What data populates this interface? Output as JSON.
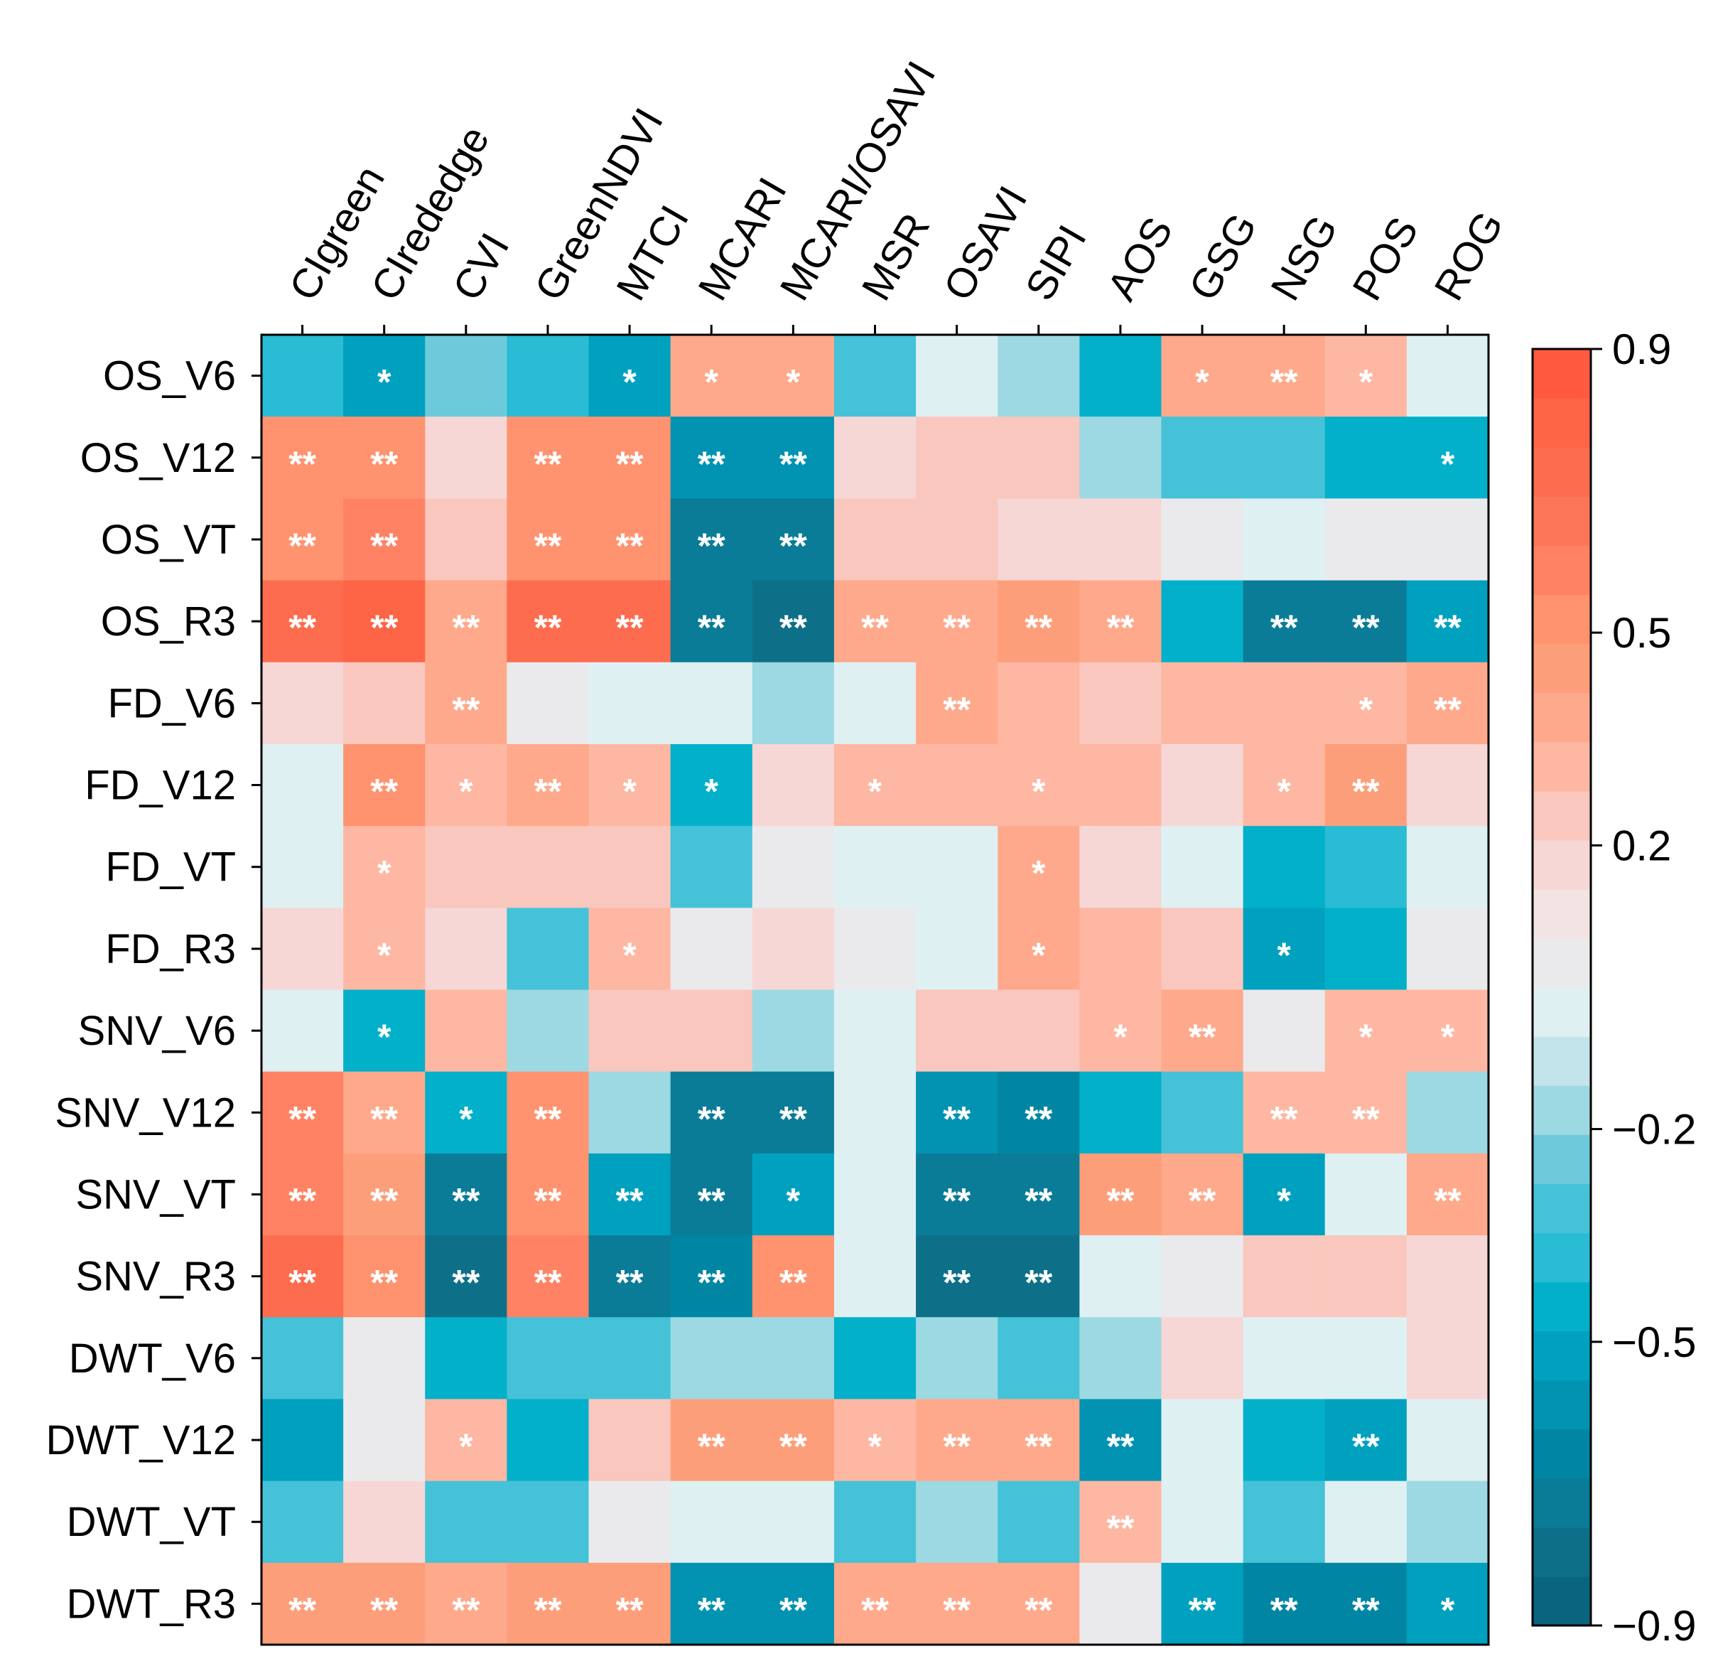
{
  "chart_data": {
    "type": "heatmap",
    "title": "",
    "xlabel": "",
    "ylabel": "",
    "columns": [
      "CIgreen",
      "CIrededge",
      "CVI",
      "GreenNDVI",
      "MTCI",
      "MCARI",
      "MCARI/OSAVI",
      "MSR",
      "OSAVI",
      "SIPI",
      "AOS",
      "GSG",
      "NSG",
      "POS",
      "ROG"
    ],
    "rows": [
      "OS_V6",
      "OS_V12",
      "OS_VT",
      "OS_R3",
      "FD_V6",
      "FD_V12",
      "FD_VT",
      "FD_R3",
      "SNV_V6",
      "SNV_V12",
      "SNV_VT",
      "SNV_R3",
      "DWT_V6",
      "DWT_V12",
      "DWT_VT",
      "DWT_R3"
    ],
    "values": [
      [
        -0.4,
        -0.5,
        -0.25,
        -0.4,
        -0.55,
        0.35,
        0.35,
        -0.3,
        -0.05,
        -0.15,
        -0.45,
        0.35,
        0.35,
        0.3,
        -0.05
      ],
      [
        0.55,
        0.55,
        0.15,
        0.55,
        0.5,
        -0.6,
        -0.6,
        0.15,
        0.25,
        0.25,
        -0.15,
        -0.3,
        -0.3,
        -0.45,
        -0.45
      ],
      [
        0.55,
        0.6,
        0.25,
        0.55,
        0.55,
        -0.7,
        -0.7,
        0.25,
        0.25,
        0.15,
        0.15,
        0.05,
        -0.05,
        0.05,
        0.05
      ],
      [
        0.7,
        0.8,
        0.4,
        0.7,
        0.75,
        -0.75,
        -0.8,
        0.4,
        0.4,
        0.45,
        0.4,
        -0.45,
        -0.7,
        -0.7,
        -0.55
      ],
      [
        0.15,
        0.25,
        0.35,
        0.05,
        -0.05,
        -0.05,
        -0.15,
        -0.05,
        0.35,
        0.3,
        0.25,
        0.3,
        0.3,
        0.3,
        0.35
      ],
      [
        -0.05,
        0.5,
        0.3,
        0.4,
        0.3,
        -0.45,
        0.15,
        0.3,
        0.3,
        0.3,
        0.3,
        0.15,
        0.3,
        0.45,
        0.15
      ],
      [
        -0.05,
        0.3,
        0.25,
        0.25,
        0.25,
        -0.3,
        0.05,
        -0.05,
        -0.05,
        0.35,
        0.15,
        -0.05,
        -0.45,
        -0.35,
        -0.05
      ],
      [
        0.15,
        0.3,
        0.15,
        -0.3,
        0.3,
        0.05,
        0.15,
        0.05,
        -0.05,
        0.4,
        0.3,
        0.25,
        -0.55,
        -0.45,
        0.05
      ],
      [
        -0.05,
        -0.45,
        0.3,
        -0.15,
        0.25,
        0.25,
        -0.15,
        -0.05,
        0.25,
        0.25,
        0.3,
        0.35,
        0.05,
        0.3,
        0.3
      ],
      [
        0.6,
        0.4,
        -0.45,
        0.55,
        -0.15,
        -0.7,
        -0.75,
        -0.05,
        -0.6,
        -0.65,
        -0.45,
        -0.3,
        0.3,
        0.3,
        -0.15
      ],
      [
        0.6,
        0.45,
        -0.7,
        0.55,
        -0.55,
        -0.7,
        -0.55,
        -0.05,
        -0.7,
        -0.7,
        0.45,
        0.4,
        -0.55,
        -0.05,
        0.4
      ],
      [
        0.7,
        0.55,
        -0.8,
        0.6,
        -0.7,
        -0.65,
        0.55,
        -0.05,
        -0.8,
        -0.8,
        -0.05,
        0.05,
        0.25,
        0.25,
        0.15
      ],
      [
        -0.3,
        0.05,
        -0.45,
        -0.3,
        -0.3,
        -0.15,
        -0.15,
        -0.45,
        -0.2,
        -0.3,
        -0.15,
        0.15,
        -0.05,
        -0.05,
        0.15
      ],
      [
        -0.5,
        0.05,
        0.3,
        -0.45,
        0.25,
        0.45,
        0.45,
        0.3,
        0.4,
        0.4,
        -0.6,
        -0.05,
        -0.45,
        -0.55,
        -0.05
      ],
      [
        -0.3,
        0.15,
        -0.3,
        -0.3,
        0.05,
        -0.05,
        -0.05,
        -0.3,
        -0.2,
        -0.3,
        0.3,
        -0.05,
        -0.3,
        -0.05,
        -0.2
      ],
      [
        0.45,
        0.45,
        0.4,
        0.45,
        0.45,
        -0.6,
        -0.6,
        0.4,
        0.4,
        0.4,
        0.05,
        -0.55,
        -0.65,
        -0.65,
        -0.55
      ]
    ],
    "significance": [
      [
        "",
        "*",
        "",
        "",
        "*",
        "*",
        "*",
        "",
        "",
        "",
        "",
        "*",
        "**",
        "*",
        ""
      ],
      [
        "**",
        "**",
        "",
        "**",
        "**",
        "**",
        "**",
        "",
        "",
        "",
        "",
        "",
        "",
        "",
        "*"
      ],
      [
        "**",
        "**",
        "",
        "**",
        "**",
        "**",
        "**",
        "",
        "",
        "",
        "",
        "",
        "",
        "",
        ""
      ],
      [
        "**",
        "**",
        "**",
        "**",
        "**",
        "**",
        "**",
        "**",
        "**",
        "**",
        "**",
        "",
        "**",
        "**",
        "**"
      ],
      [
        "",
        "",
        "**",
        "",
        "",
        "",
        "",
        "",
        "**",
        "",
        "",
        "",
        "",
        "*",
        "**"
      ],
      [
        "",
        "**",
        "*",
        "**",
        "*",
        "*",
        "",
        "*",
        "",
        "*",
        "",
        "",
        "*",
        "**",
        ""
      ],
      [
        "",
        "*",
        "",
        "",
        "",
        "",
        "",
        "",
        "",
        "*",
        "",
        "",
        "",
        "",
        ""
      ],
      [
        "",
        "*",
        "",
        "",
        "*",
        "",
        "",
        "",
        "",
        "*",
        "",
        "",
        "*",
        "",
        ""
      ],
      [
        "",
        "*",
        "",
        "",
        "",
        "",
        "",
        "",
        "",
        "",
        "*",
        "**",
        "",
        "*",
        "*"
      ],
      [
        "**",
        "**",
        "*",
        "**",
        "",
        "**",
        "**",
        "",
        "**",
        "**",
        "",
        "",
        "**",
        "**",
        ""
      ],
      [
        "**",
        "**",
        "**",
        "**",
        "**",
        "**",
        "*",
        "",
        "**",
        "**",
        "**",
        "**",
        "*",
        "",
        "**"
      ],
      [
        "**",
        "**",
        "**",
        "**",
        "**",
        "**",
        "**",
        "",
        "**",
        "**",
        "",
        "",
        "",
        "",
        ""
      ],
      [
        "",
        "",
        "",
        "",
        "",
        "",
        "",
        "",
        "",
        "",
        "",
        "",
        "",
        "",
        ""
      ],
      [
        "",
        "",
        "*",
        "",
        "",
        "**",
        "**",
        "*",
        "**",
        "**",
        "**",
        "",
        "",
        "**",
        ""
      ],
      [
        "",
        "",
        "",
        "",
        "",
        "",
        "",
        "",
        "",
        "",
        "**",
        "",
        "",
        "",
        ""
      ],
      [
        "**",
        "**",
        "**",
        "**",
        "**",
        "**",
        "**",
        "**",
        "**",
        "**",
        "",
        "**",
        "**",
        "**",
        "*"
      ]
    ],
    "colorbar": {
      "range": [
        -0.9,
        0.9
      ],
      "tick_values": [
        0.9,
        0.5,
        0.2,
        -0.2,
        -0.5,
        -0.9
      ],
      "tick_labels": [
        "0.9",
        "0.5",
        "0.2",
        "−0.2",
        "−0.5",
        "−0.9"
      ],
      "colors": [
        "#09657f",
        "#0e7088",
        "#0a7c97",
        "#0086a3",
        "#0193b1",
        "#00a1bf",
        "#03b0ca",
        "#29bcd4",
        "#45c2d8",
        "#6dcadb",
        "#9dd9e2",
        "#c2e4ea",
        "#dff0f3",
        "#eaeaec",
        "#f3e4e4",
        "#f6d7d5",
        "#f9c7bd",
        "#fdb7a2",
        "#fea98b",
        "#fd9e7b",
        "#ff926f",
        "#fe8263",
        "#fe7659",
        "#fd6c4e",
        "#fe6546",
        "#ff5a40"
      ]
    },
    "legend": "right"
  }
}
